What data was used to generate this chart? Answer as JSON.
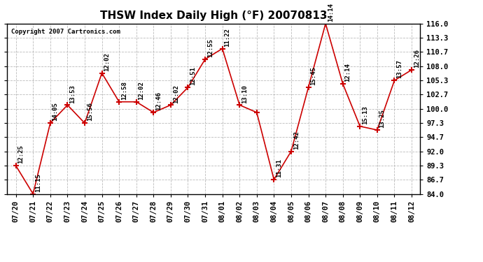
{
  "title": "THSW Index Daily High (°F) 20070813",
  "copyright": "Copyright 2007 Cartronics.com",
  "x_labels": [
    "07/20",
    "07/21",
    "07/22",
    "07/23",
    "07/24",
    "07/25",
    "07/26",
    "07/27",
    "07/28",
    "07/29",
    "07/30",
    "07/31",
    "08/01",
    "08/02",
    "08/03",
    "08/04",
    "08/05",
    "08/06",
    "08/07",
    "08/08",
    "08/09",
    "08/10",
    "08/11",
    "08/12"
  ],
  "y_values": [
    89.3,
    84.0,
    97.3,
    100.7,
    97.3,
    106.7,
    101.3,
    101.3,
    99.3,
    100.7,
    104.0,
    109.3,
    111.3,
    100.7,
    99.3,
    86.7,
    92.0,
    104.0,
    116.0,
    104.7,
    96.7,
    96.0,
    105.3,
    107.3
  ],
  "point_labels": [
    "12:25",
    "11:15",
    "14:05",
    "13:53",
    "15:56",
    "12:02",
    "12:58",
    "12:02",
    "12:46",
    "12:02",
    "12:51",
    "12:55",
    "11:22",
    "13:10",
    "",
    "11:31",
    "12:42",
    "15:45",
    "14:14",
    "12:14",
    "15:13",
    "13:25",
    "13:57",
    "12:26"
  ],
  "ylim": [
    84.0,
    116.0
  ],
  "yticks": [
    84.0,
    86.7,
    89.3,
    92.0,
    94.7,
    97.3,
    100.0,
    102.7,
    105.3,
    108.0,
    110.7,
    113.3,
    116.0
  ],
  "line_color": "#cc0000",
  "marker_color": "#cc0000",
  "background_color": "#ffffff",
  "plot_bg_color": "#ffffff",
  "grid_color": "#aaaaaa",
  "title_fontsize": 11,
  "tick_fontsize": 7.5,
  "label_fontsize": 6.5,
  "copyright_fontsize": 6.5
}
